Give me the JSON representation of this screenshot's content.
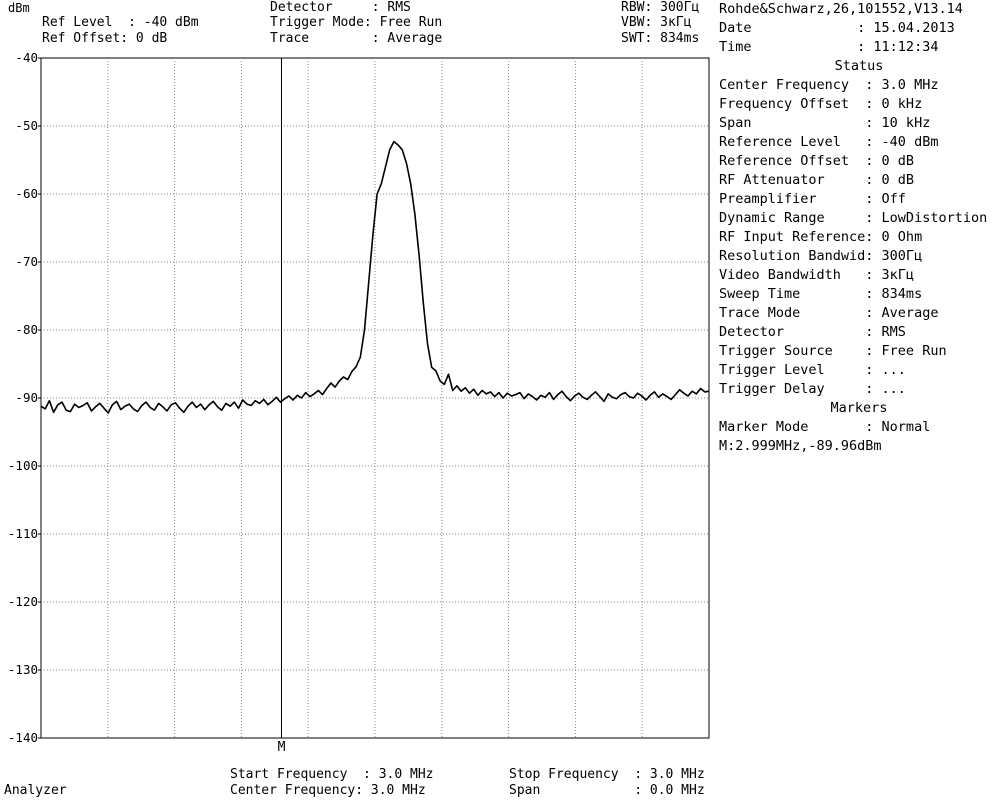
{
  "header": {
    "unit": "dBm",
    "ref_level": "Ref Level  : -40 dBm",
    "ref_offset": "Ref Offset: 0 dB",
    "detector": "Detector     : RMS",
    "trigger_mode": "Trigger Mode: Free Run",
    "trace": "Trace        : Average",
    "rbw": "RBW: 300Гц",
    "vbw": "VBW: 3кГц",
    "swt": "SWT: 834ms"
  },
  "side_panel": {
    "device": "Rohde&Schwarz,26,101552,V13.14",
    "date": "Date             : 15.04.2013",
    "time": "Time             : 11:12:34",
    "status_title": "Status",
    "status_lines": [
      "Center Frequency  : 3.0 MHz",
      "Frequency Offset  : 0 kHz",
      "Span              : 10 kHz",
      "Reference Level   : -40 dBm",
      "Reference Offset  : 0 dB",
      "RF Attenuator     : 0 dB",
      "Preamplifier      : Off",
      "Dynamic Range     : LowDistortion",
      "RF Input Reference: 0 Ohm",
      "Resolution Bandwid: 300Гц",
      "Video Bandwidth   : 3кГц",
      "Sweep Time        : 834ms",
      "Trace Mode        : Average",
      "Detector          : RMS",
      "Trigger Source    : Free Run",
      "Trigger Level     : ...",
      "Trigger Delay     : ..."
    ],
    "markers_title": "Markers",
    "marker_mode": "Marker Mode       : Normal",
    "marker_readout": "M:2.999MHz,-89.96dBm"
  },
  "footer": {
    "mode": "Analyzer",
    "start_freq": "Start Frequency  : 3.0 MHz",
    "center_freq": "Center Frequency: 3.0 MHz",
    "stop_freq": "Stop Frequency  : 3.0 MHz",
    "span": "Span            : 0.0 MHz"
  },
  "chart_data": {
    "type": "line",
    "ylim": [
      -140,
      -40
    ],
    "y_ticks": [
      -40,
      -50,
      -60,
      -70,
      -80,
      -90,
      -100,
      -110,
      -120,
      -130,
      -140
    ],
    "xlim": [
      0,
      10
    ],
    "grid": true,
    "marker": {
      "label": "M",
      "x": 3.6
    },
    "series": [
      {
        "values": [
          -91.2,
          -91.6,
          -90.4,
          -92.1,
          -91.0,
          -90.6,
          -91.8,
          -92.0,
          -90.9,
          -91.4,
          -91.1,
          -90.7,
          -91.9,
          -91.3,
          -90.8,
          -91.5,
          -92.2,
          -91.0,
          -90.5,
          -91.7,
          -91.2,
          -90.9,
          -91.6,
          -92.0,
          -91.1,
          -90.6,
          -91.4,
          -91.8,
          -90.8,
          -91.3,
          -91.9,
          -91.0,
          -90.7,
          -91.5,
          -92.1,
          -91.2,
          -90.6,
          -91.4,
          -90.9,
          -91.7,
          -91.0,
          -90.5,
          -91.3,
          -91.8,
          -90.8,
          -91.2,
          -90.6,
          -91.5,
          -90.3,
          -90.9,
          -91.1,
          -90.4,
          -90.8,
          -90.2,
          -91.0,
          -90.5,
          -89.9,
          -90.6,
          -90.1,
          -89.7,
          -90.3,
          -89.6,
          -90.0,
          -89.2,
          -89.8,
          -89.4,
          -88.9,
          -89.5,
          -88.6,
          -87.8,
          -88.4,
          -87.5,
          -86.9,
          -87.3,
          -86.1,
          -85.4,
          -84.0,
          -80.0,
          -73.0,
          -66.0,
          -60.0,
          -58.5,
          -56.0,
          -53.5,
          -52.3,
          -52.8,
          -53.5,
          -55.5,
          -58.5,
          -63.0,
          -69.0,
          -76.0,
          -82.0,
          -85.5,
          -86.0,
          -87.5,
          -88.0,
          -86.5,
          -88.9,
          -88.2,
          -89.0,
          -88.5,
          -89.3,
          -88.7,
          -89.6,
          -88.9,
          -89.4,
          -89.1,
          -89.8,
          -89.2,
          -90.0,
          -89.3,
          -89.7,
          -89.5,
          -89.2,
          -90.1,
          -89.4,
          -89.8,
          -90.3,
          -89.6,
          -89.9,
          -89.2,
          -90.2,
          -89.5,
          -89.0,
          -89.8,
          -90.4,
          -89.7,
          -89.3,
          -89.9,
          -90.2,
          -89.6,
          -89.1,
          -89.8,
          -90.5,
          -89.4,
          -89.9,
          -90.1,
          -89.5,
          -89.2,
          -89.8,
          -90.0,
          -89.3,
          -89.7,
          -90.3,
          -89.6,
          -89.1,
          -89.9,
          -89.4,
          -89.8,
          -90.2,
          -89.5,
          -88.8,
          -89.3,
          -89.7,
          -89.0,
          -89.4,
          -88.6,
          -89.1,
          -89.0
        ]
      }
    ]
  }
}
